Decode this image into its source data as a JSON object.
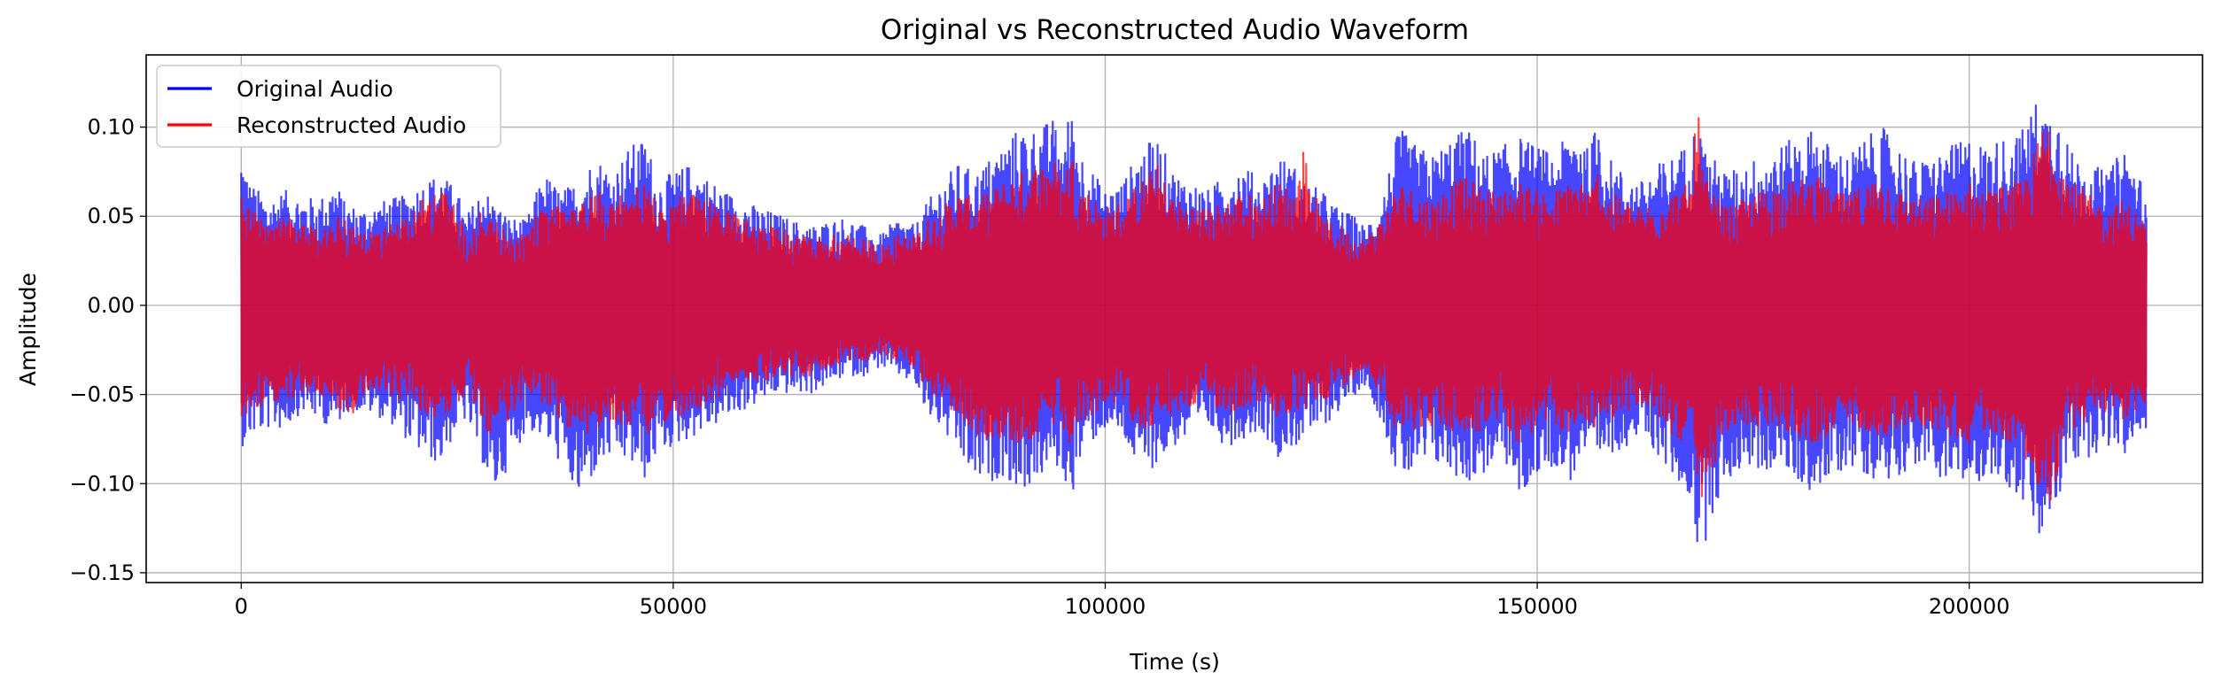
{
  "chart_data": {
    "type": "line",
    "title": "Original vs Reconstructed Audio Waveform",
    "xlabel": "Time (s)",
    "ylabel": "Amplitude",
    "xlim": [
      -11000,
      227000
    ],
    "ylim": [
      -0.1555,
      0.1405
    ],
    "xticks": [
      0,
      50000,
      100000,
      150000,
      200000
    ],
    "xtick_labels": [
      "0",
      "50000",
      "100000",
      "150000",
      "200000"
    ],
    "yticks": [
      -0.15,
      -0.1,
      -0.05,
      0.0,
      0.05,
      0.1
    ],
    "ytick_labels": [
      "−0.15",
      "−0.10",
      "−0.05",
      "0.00",
      "0.05",
      "0.10"
    ],
    "grid": true,
    "legend_position": "upper-left",
    "x_range": [
      0,
      220500
    ],
    "envelope_x": [
      0,
      1000,
      3000,
      5000,
      7000,
      9000,
      11000,
      12000,
      14000,
      17000,
      19000,
      21000,
      23000,
      25000,
      26000,
      28000,
      29000,
      31000,
      33000,
      35000,
      37000,
      39000,
      41000,
      43000,
      45000,
      47000,
      48000,
      50000,
      52000,
      54000,
      56000,
      58000,
      60000,
      62000,
      64000,
      66000,
      68000,
      70000,
      72000,
      74000,
      76000,
      78000,
      79000,
      81000,
      83000,
      85000,
      87000,
      88000,
      90000,
      92000,
      94000,
      95000,
      96000,
      97000,
      98000,
      100000,
      102000,
      104000,
      106000,
      108000,
      110000,
      112000,
      114000,
      116000,
      118000,
      120000,
      122000,
      123000,
      125000,
      127000,
      129000,
      130000,
      132000,
      134000,
      136000,
      138000,
      140000,
      142000,
      144000,
      146000,
      148000,
      150000,
      152000,
      154000,
      155000,
      156000,
      157000,
      158000,
      160000,
      162000,
      164000,
      166000,
      168000,
      168500,
      169000,
      170000,
      172000,
      174000,
      176000,
      178000,
      180000,
      182000,
      184000,
      186000,
      188000,
      190000,
      192000,
      194000,
      196000,
      198000,
      200000,
      202000,
      204000,
      206000,
      207000,
      208000,
      209000,
      210000,
      211000,
      212000,
      214000,
      216000,
      218000,
      220000,
      220500
    ],
    "series": [
      {
        "name": "Original Audio",
        "color": "#0000ff",
        "upper": [
          0.088,
          0.07,
          0.06,
          0.065,
          0.062,
          0.06,
          0.07,
          0.058,
          0.055,
          0.06,
          0.062,
          0.07,
          0.075,
          0.065,
          0.05,
          0.068,
          0.06,
          0.05,
          0.048,
          0.075,
          0.065,
          0.07,
          0.085,
          0.075,
          0.09,
          0.095,
          0.07,
          0.075,
          0.08,
          0.072,
          0.065,
          0.06,
          0.055,
          0.052,
          0.048,
          0.045,
          0.048,
          0.05,
          0.045,
          0.04,
          0.05,
          0.045,
          0.055,
          0.07,
          0.08,
          0.075,
          0.085,
          0.09,
          0.1,
          0.1,
          0.105,
          0.09,
          0.112,
          0.09,
          0.08,
          0.065,
          0.07,
          0.088,
          0.095,
          0.075,
          0.07,
          0.065,
          0.075,
          0.08,
          0.07,
          0.085,
          0.078,
          0.07,
          0.065,
          0.055,
          0.05,
          0.045,
          0.06,
          0.1,
          0.09,
          0.085,
          0.095,
          0.1,
          0.085,
          0.09,
          0.095,
          0.09,
          0.085,
          0.1,
          0.103,
          0.085,
          0.108,
          0.085,
          0.075,
          0.07,
          0.08,
          0.085,
          0.095,
          0.11,
          0.095,
          0.085,
          0.075,
          0.08,
          0.085,
          0.09,
          0.095,
          0.1,
          0.09,
          0.085,
          0.095,
          0.1,
          0.09,
          0.08,
          0.085,
          0.09,
          0.095,
          0.09,
          0.095,
          0.098,
          0.108,
          0.118,
          0.11,
          0.115,
          0.1,
          0.085,
          0.08,
          0.075,
          0.09,
          0.07,
          0.06
        ],
        "lower": [
          -0.08,
          -0.075,
          -0.07,
          -0.07,
          -0.06,
          -0.065,
          -0.07,
          -0.06,
          -0.06,
          -0.065,
          -0.075,
          -0.085,
          -0.09,
          -0.07,
          -0.065,
          -0.09,
          -0.11,
          -0.09,
          -0.07,
          -0.075,
          -0.09,
          -0.11,
          -0.095,
          -0.085,
          -0.09,
          -0.1,
          -0.085,
          -0.08,
          -0.075,
          -0.07,
          -0.065,
          -0.06,
          -0.055,
          -0.05,
          -0.05,
          -0.05,
          -0.045,
          -0.04,
          -0.04,
          -0.035,
          -0.04,
          -0.045,
          -0.06,
          -0.07,
          -0.085,
          -0.1,
          -0.1,
          -0.095,
          -0.105,
          -0.1,
          -0.09,
          -0.095,
          -0.11,
          -0.09,
          -0.08,
          -0.07,
          -0.075,
          -0.095,
          -0.09,
          -0.08,
          -0.075,
          -0.07,
          -0.08,
          -0.075,
          -0.07,
          -0.085,
          -0.08,
          -0.075,
          -0.07,
          -0.06,
          -0.05,
          -0.045,
          -0.065,
          -0.1,
          -0.095,
          -0.09,
          -0.095,
          -0.1,
          -0.095,
          -0.085,
          -0.11,
          -0.095,
          -0.09,
          -0.1,
          -0.085,
          -0.09,
          -0.095,
          -0.085,
          -0.08,
          -0.075,
          -0.085,
          -0.1,
          -0.11,
          -0.14,
          -0.145,
          -0.12,
          -0.1,
          -0.09,
          -0.095,
          -0.09,
          -0.1,
          -0.105,
          -0.1,
          -0.09,
          -0.095,
          -0.1,
          -0.095,
          -0.09,
          -0.095,
          -0.1,
          -0.105,
          -0.095,
          -0.1,
          -0.11,
          -0.12,
          -0.135,
          -0.13,
          -0.115,
          -0.1,
          -0.09,
          -0.085,
          -0.08,
          -0.085,
          -0.075,
          -0.07
        ]
      },
      {
        "name": "Reconstructed Audio",
        "color": "#ff0000",
        "upper": [
          0.07,
          0.055,
          0.045,
          0.05,
          0.048,
          0.045,
          0.05,
          0.048,
          0.04,
          0.045,
          0.05,
          0.06,
          0.07,
          0.055,
          0.04,
          0.055,
          0.05,
          0.04,
          0.04,
          0.06,
          0.055,
          0.06,
          0.065,
          0.06,
          0.065,
          0.07,
          0.06,
          0.06,
          0.065,
          0.06,
          0.055,
          0.05,
          0.045,
          0.045,
          0.04,
          0.038,
          0.04,
          0.04,
          0.038,
          0.035,
          0.04,
          0.04,
          0.048,
          0.055,
          0.065,
          0.06,
          0.065,
          0.07,
          0.075,
          0.08,
          0.085,
          0.07,
          0.09,
          0.07,
          0.065,
          0.055,
          0.06,
          0.07,
          0.08,
          0.06,
          0.058,
          0.055,
          0.06,
          0.065,
          0.06,
          0.07,
          0.065,
          0.09,
          0.05,
          0.045,
          0.04,
          0.038,
          0.05,
          0.07,
          0.065,
          0.06,
          0.07,
          0.072,
          0.065,
          0.065,
          0.07,
          0.065,
          0.065,
          0.07,
          0.075,
          0.065,
          0.078,
          0.065,
          0.06,
          0.055,
          0.062,
          0.065,
          0.07,
          0.125,
          0.08,
          0.065,
          0.055,
          0.06,
          0.065,
          0.07,
          0.07,
          0.075,
          0.065,
          0.062,
          0.07,
          0.075,
          0.065,
          0.06,
          0.062,
          0.065,
          0.07,
          0.065,
          0.068,
          0.07,
          0.078,
          0.095,
          0.11,
          0.095,
          0.08,
          0.07,
          0.062,
          0.055,
          0.06,
          0.05,
          0.045
        ],
        "lower": [
          -0.065,
          -0.06,
          -0.055,
          -0.055,
          -0.05,
          -0.05,
          -0.055,
          -0.075,
          -0.05,
          -0.05,
          -0.055,
          -0.06,
          -0.065,
          -0.055,
          -0.05,
          -0.065,
          -0.08,
          -0.065,
          -0.05,
          -0.055,
          -0.065,
          -0.075,
          -0.07,
          -0.065,
          -0.07,
          -0.075,
          -0.07,
          -0.065,
          -0.06,
          -0.055,
          -0.05,
          -0.045,
          -0.045,
          -0.04,
          -0.04,
          -0.04,
          -0.035,
          -0.032,
          -0.032,
          -0.03,
          -0.032,
          -0.035,
          -0.045,
          -0.055,
          -0.065,
          -0.075,
          -0.075,
          -0.075,
          -0.08,
          -0.075,
          -0.07,
          -0.07,
          -0.085,
          -0.07,
          -0.065,
          -0.055,
          -0.058,
          -0.07,
          -0.068,
          -0.062,
          -0.058,
          -0.055,
          -0.062,
          -0.058,
          -0.055,
          -0.065,
          -0.062,
          -0.06,
          -0.055,
          -0.048,
          -0.04,
          -0.038,
          -0.05,
          -0.075,
          -0.07,
          -0.068,
          -0.072,
          -0.075,
          -0.07,
          -0.065,
          -0.08,
          -0.07,
          -0.068,
          -0.075,
          -0.065,
          -0.068,
          -0.07,
          -0.065,
          -0.06,
          -0.058,
          -0.065,
          -0.075,
          -0.08,
          -0.115,
          -0.12,
          -0.095,
          -0.075,
          -0.068,
          -0.07,
          -0.068,
          -0.075,
          -0.078,
          -0.075,
          -0.068,
          -0.07,
          -0.075,
          -0.07,
          -0.068,
          -0.07,
          -0.075,
          -0.078,
          -0.07,
          -0.075,
          -0.082,
          -0.09,
          -0.12,
          -0.118,
          -0.1,
          -0.08,
          -0.07,
          -0.065,
          -0.06,
          -0.065,
          -0.058,
          -0.055
        ]
      }
    ]
  }
}
